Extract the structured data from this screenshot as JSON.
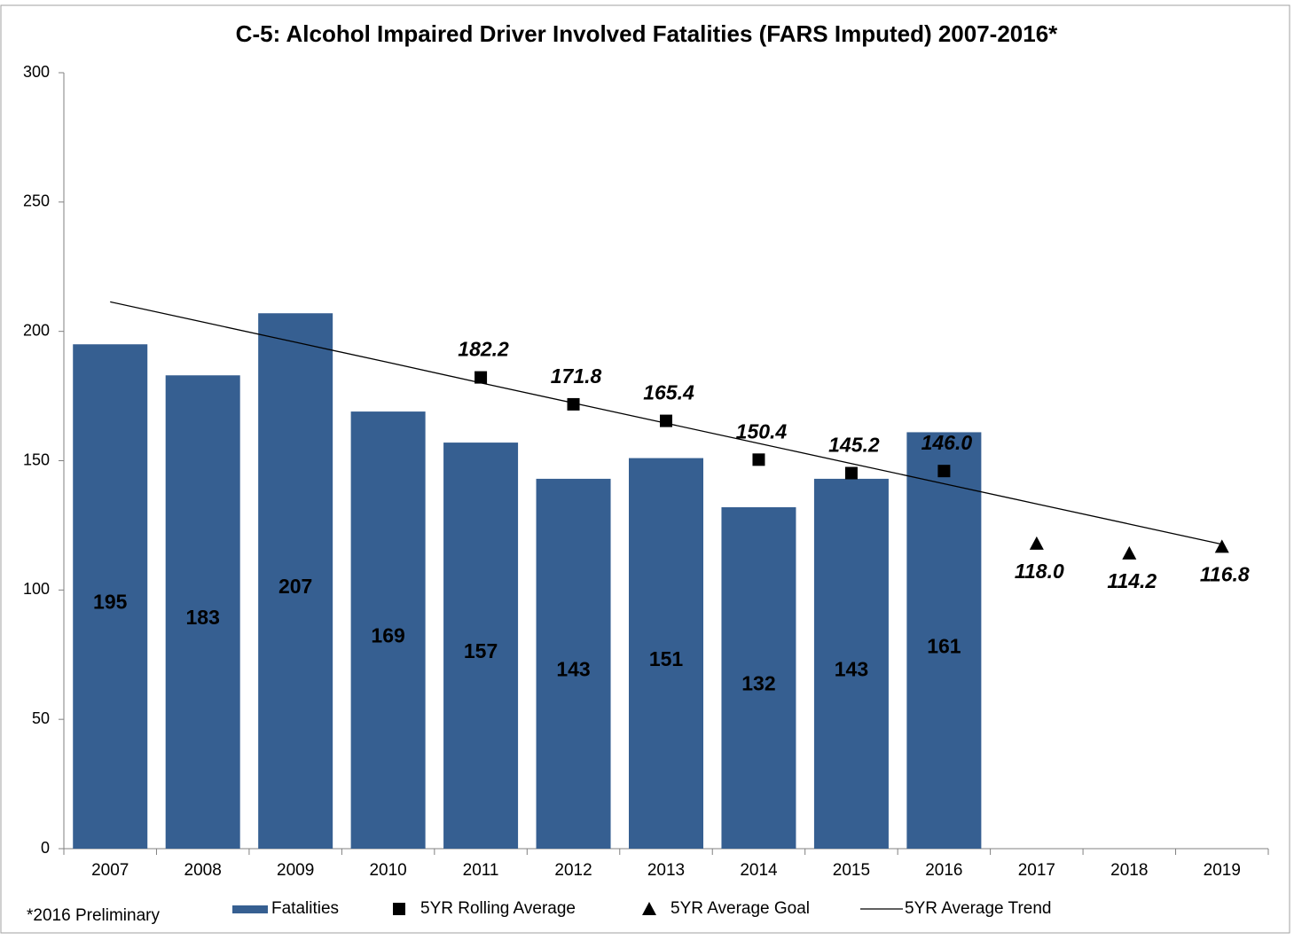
{
  "chart_data": {
    "type": "bar",
    "title": "C-5: Alcohol Impaired Driver Involved Fatalities (FARS Imputed) 2007-2016*",
    "footnote": "*2016 Preliminary",
    "categories": [
      "2007",
      "2008",
      "2009",
      "2010",
      "2011",
      "2012",
      "2013",
      "2014",
      "2015",
      "2016",
      "2017",
      "2018",
      "2019"
    ],
    "ylim": [
      0,
      300
    ],
    "yticks": [
      0,
      50,
      100,
      150,
      200,
      250,
      300
    ],
    "grid": false,
    "series": [
      {
        "name": "Fatalities",
        "type": "bar",
        "color": "#365f91",
        "values": [
          195,
          183,
          207,
          169,
          157,
          143,
          151,
          132,
          143,
          161,
          null,
          null,
          null
        ]
      },
      {
        "name": "5YR Rolling Average",
        "type": "scatter",
        "marker": "square",
        "color": "#000000",
        "values": [
          null,
          null,
          null,
          null,
          182.2,
          171.8,
          165.4,
          150.4,
          145.2,
          146,
          null,
          null,
          null
        ],
        "value_labels": [
          null,
          null,
          null,
          null,
          "182.2",
          "171.8",
          "165.4",
          "150.4",
          "145.2",
          "146.0",
          null,
          null,
          null
        ]
      },
      {
        "name": "5YR Average Goal",
        "type": "scatter",
        "marker": "triangle",
        "color": "#000000",
        "values": [
          null,
          null,
          null,
          null,
          null,
          null,
          null,
          null,
          null,
          null,
          118,
          114.2,
          116.8
        ],
        "value_labels": [
          null,
          null,
          null,
          null,
          null,
          null,
          null,
          null,
          null,
          null,
          "118.0",
          "114.2",
          "116.8"
        ]
      },
      {
        "name": "5YR Average Trend",
        "type": "line",
        "color": "#000000",
        "values": [
          211.4,
          203.6,
          195.8,
          188.0,
          180.1,
          172.3,
          164.5,
          156.7,
          148.9,
          141.1,
          133.3,
          125.5,
          117.7
        ]
      }
    ]
  }
}
